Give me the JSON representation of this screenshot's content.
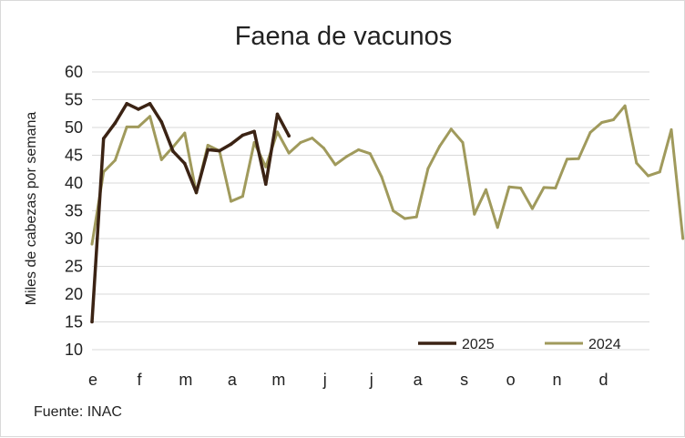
{
  "chart_data": {
    "type": "line",
    "title": "Faena de vacunos",
    "ylabel": "Miles de cabezas por semana",
    "xlabel": "",
    "ylim": [
      10,
      60
    ],
    "yticks": [
      10,
      15,
      20,
      25,
      30,
      35,
      40,
      45,
      50,
      55,
      60
    ],
    "month_labels": [
      "e",
      "f",
      "m",
      "a",
      "m",
      "j",
      "j",
      "a",
      "s",
      "o",
      "n",
      "d"
    ],
    "grid": true,
    "legend_position": "bottom-right",
    "source": "Fuente: INAC",
    "colors": {
      "2025": "#3b2314",
      "2024": "#a09a5c",
      "grid": "#d9d9d9"
    },
    "series": [
      {
        "name": "2025",
        "color": "#3b2314",
        "values": [
          15.0,
          48.0,
          50.8,
          54.3,
          53.3,
          54.3,
          51.0,
          45.7,
          43.5,
          38.3,
          46.0,
          45.8,
          47.0,
          48.6,
          49.3,
          39.8,
          52.4,
          48.5
        ]
      },
      {
        "name": "2024",
        "color": "#a09a5c",
        "values": [
          29.0,
          42.0,
          44.1,
          50.1,
          50.1,
          52.0,
          44.2,
          46.5,
          49.0,
          38.2,
          46.8,
          45.8,
          36.7,
          37.6,
          47.3,
          42.9,
          49.2,
          45.4,
          47.3,
          48.1,
          46.3,
          43.3,
          44.8,
          46.0,
          45.3,
          41.1,
          35.0,
          33.6,
          33.9,
          42.6,
          46.6,
          49.7,
          47.3,
          34.4,
          38.8,
          32.0,
          39.3,
          39.1,
          35.4,
          39.2,
          39.1,
          44.3,
          44.4,
          49.1,
          50.9,
          51.4,
          53.9,
          43.6,
          41.3,
          42.0,
          49.6,
          30.0
        ]
      }
    ]
  }
}
